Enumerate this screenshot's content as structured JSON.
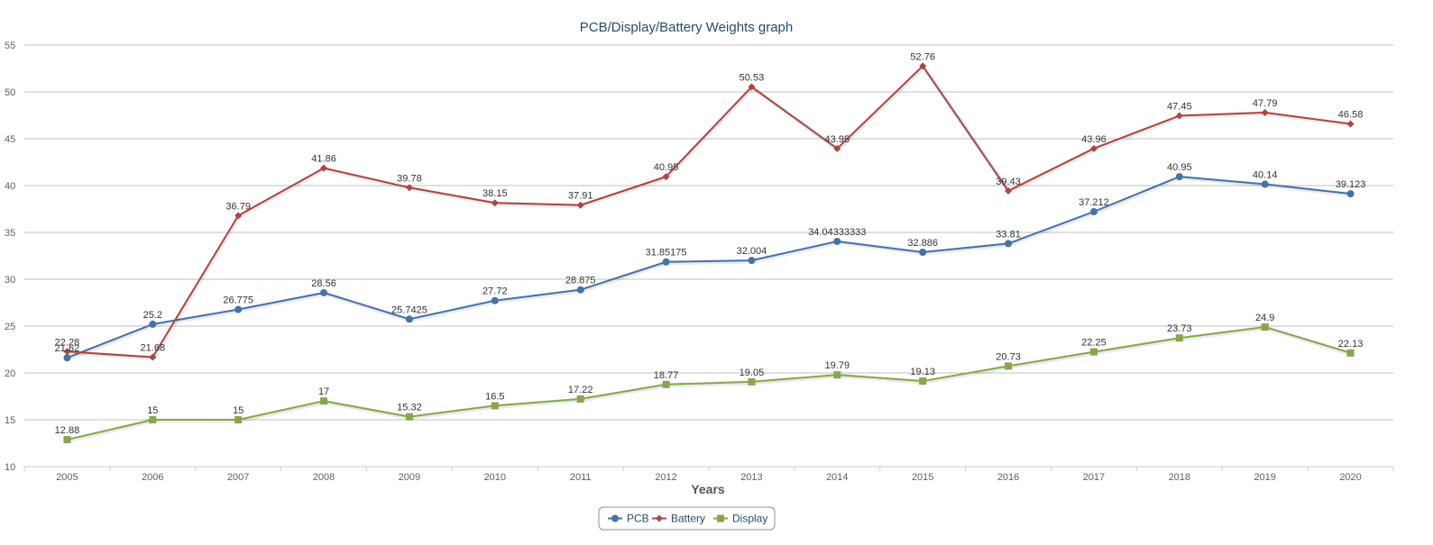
{
  "chart_data": {
    "type": "line",
    "title": "PCB/Display/Battery Weights graph",
    "xlabel": "Years",
    "ylabel": "",
    "categories": [
      "2005",
      "2006",
      "2007",
      "2008",
      "2009",
      "2010",
      "2011",
      "2012",
      "2013",
      "2014",
      "2015",
      "2016",
      "2017",
      "2018",
      "2019",
      "2020"
    ],
    "ylim": [
      10,
      55
    ],
    "yticks": [
      "10",
      "15",
      "20",
      "25",
      "30",
      "35",
      "40",
      "45",
      "50",
      "55"
    ],
    "grid": true,
    "legend_position": "bottom-center",
    "series": [
      {
        "name": "PCB",
        "color": "#4572a7",
        "marker": "circle",
        "values": [
          21.62,
          25.2,
          26.775,
          28.56,
          25.7425,
          27.72,
          28.875,
          31.85175,
          32.004,
          34.04333333,
          32.886,
          33.81,
          37.212,
          40.95,
          40.14,
          39.123
        ],
        "labels": [
          "21.62",
          "25.2",
          "26.775",
          "28.56",
          "25.7425",
          "27.72",
          "28.875",
          "31.85175",
          "32.004",
          "34.04333333",
          "32.886",
          "33.81",
          "37.212",
          "40.95",
          "40.14",
          "39.123"
        ]
      },
      {
        "name": "Battery",
        "color": "#aa4643",
        "marker": "diamond",
        "values": [
          22.28,
          21.68,
          36.79,
          41.86,
          39.78,
          38.15,
          37.91,
          40.95,
          50.53,
          43.95,
          52.76,
          39.43,
          43.96,
          47.45,
          47.79,
          46.58
        ],
        "labels": [
          "22.28",
          "21.68",
          "36.79",
          "41.86",
          "39.78",
          "38.15",
          "37.91",
          "40.95",
          "50.53",
          "43.95",
          "52.76",
          "39.43",
          "43.96",
          "47.45",
          "47.79",
          "46.58"
        ]
      },
      {
        "name": "Display",
        "color": "#89a54e",
        "marker": "square",
        "values": [
          12.88,
          15,
          15,
          17,
          15.32,
          16.5,
          17.22,
          18.77,
          19.05,
          19.79,
          19.13,
          20.73,
          22.25,
          23.73,
          24.9,
          22.13
        ],
        "labels": [
          "12.88",
          "15",
          "15",
          "17",
          "15.32",
          "16.5",
          "17.22",
          "18.77",
          "19.05",
          "19.79",
          "19.13",
          "20.73",
          "22.25",
          "23.73",
          "24.9",
          "22.13"
        ]
      }
    ]
  }
}
